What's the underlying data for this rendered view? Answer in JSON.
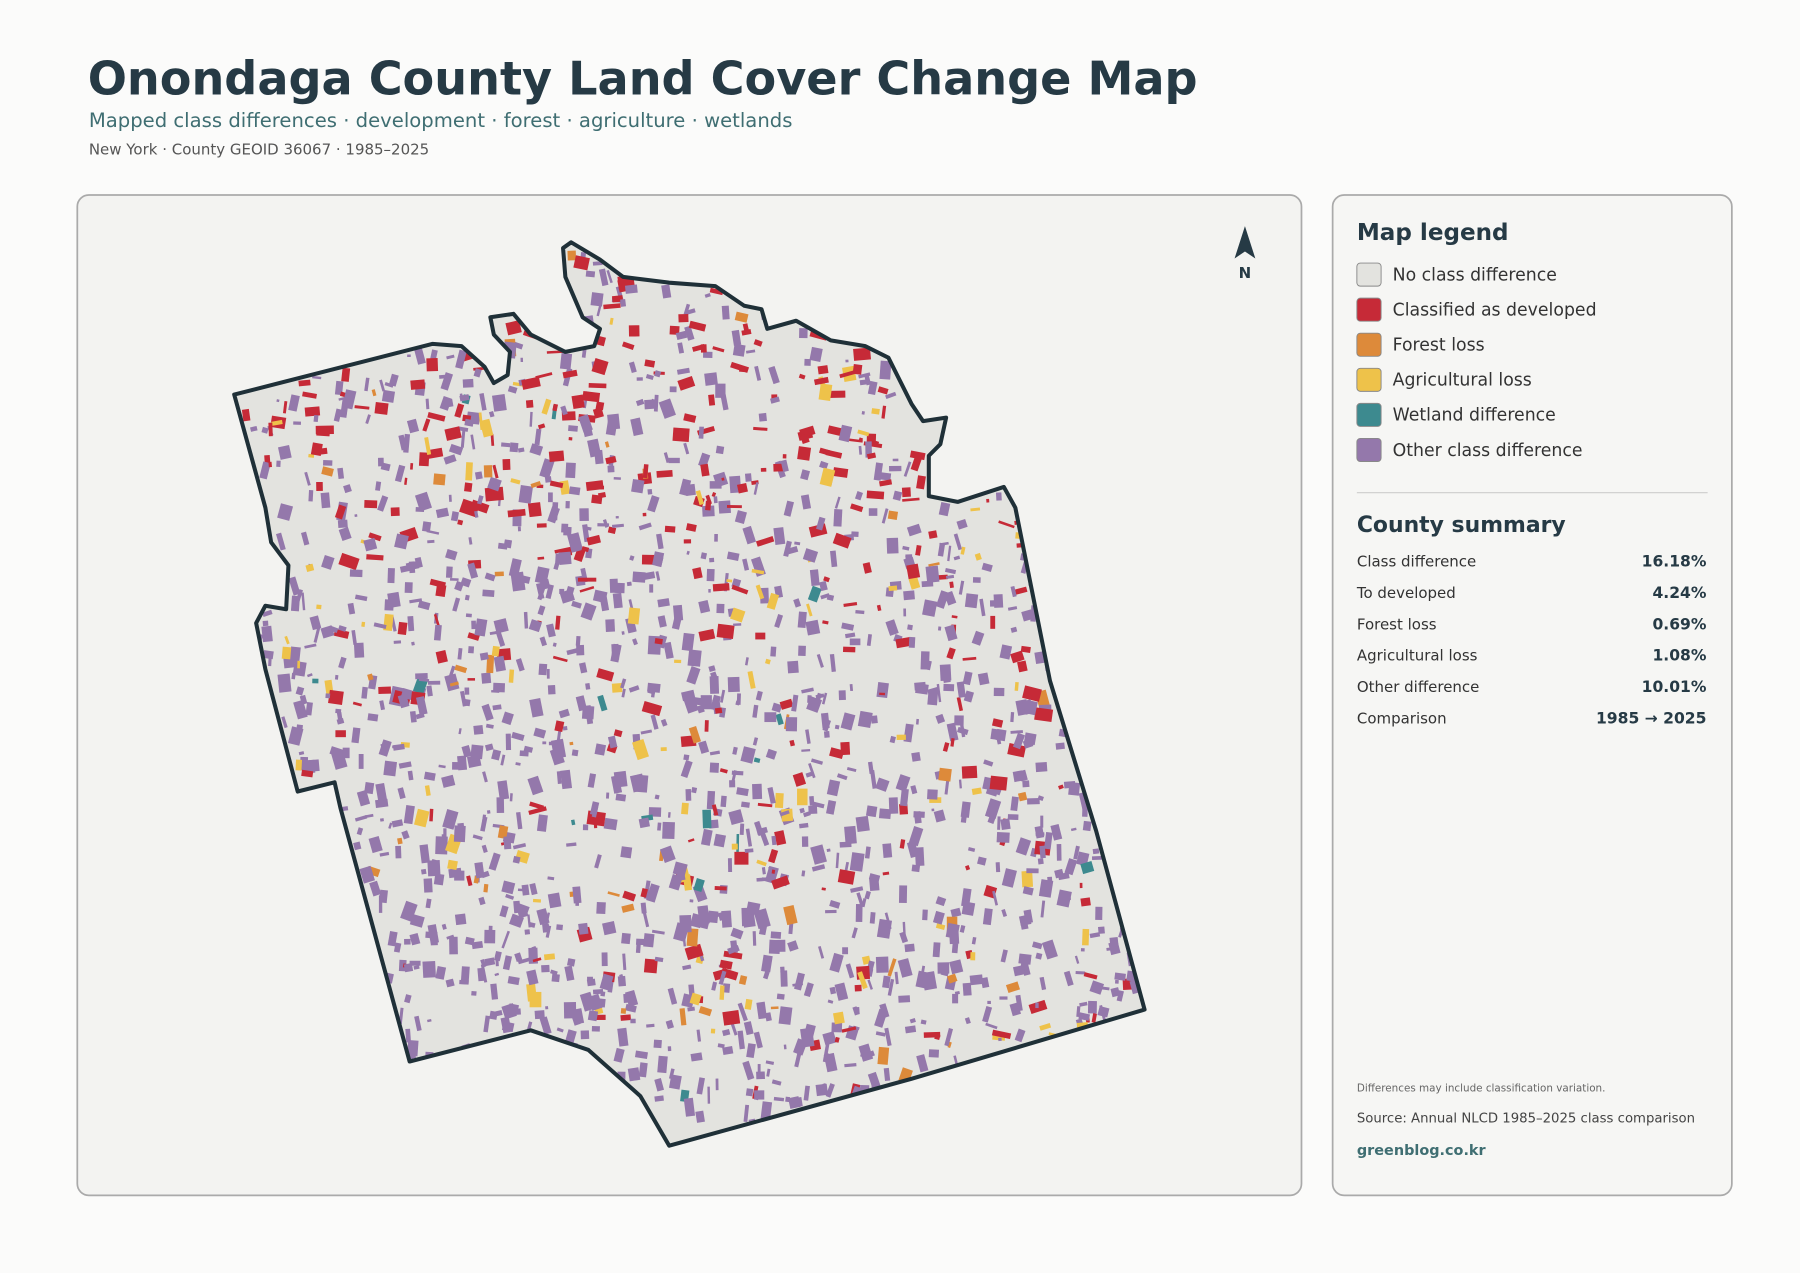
{
  "header": {
    "title": "Onondaga County Land Cover Change Map",
    "subtitle": "Mapped class differences · development · forest · agriculture · wetlands",
    "meta": "New York · County GEOID 36067 · 1985–2025"
  },
  "map": {
    "north_label": "N"
  },
  "legend": {
    "title": "Map legend",
    "items": [
      {
        "label": "No class difference",
        "color": "#e3e3df"
      },
      {
        "label": "Classified as developed",
        "color": "#c62a37"
      },
      {
        "label": "Forest loss",
        "color": "#dd8a3a"
      },
      {
        "label": "Agricultural loss",
        "color": "#eec24a"
      },
      {
        "label": "Wetland difference",
        "color": "#3d8a8f"
      },
      {
        "label": "Other class difference",
        "color": "#9478ab"
      }
    ]
  },
  "summary": {
    "title": "County summary",
    "rows": [
      [
        "Class difference",
        "16.18%"
      ],
      [
        "To developed",
        "4.24%"
      ],
      [
        "Forest loss",
        "0.69%"
      ],
      [
        "Agricultural loss",
        "1.08%"
      ],
      [
        "Other difference",
        "10.01%"
      ],
      [
        "Comparison",
        "1985 → 2025"
      ]
    ]
  },
  "footer": {
    "note": "Differences may include classification variation.",
    "source": "Source: Annual NLCD 1985–2025 class comparison",
    "site": "greenblog.co.kr"
  }
}
